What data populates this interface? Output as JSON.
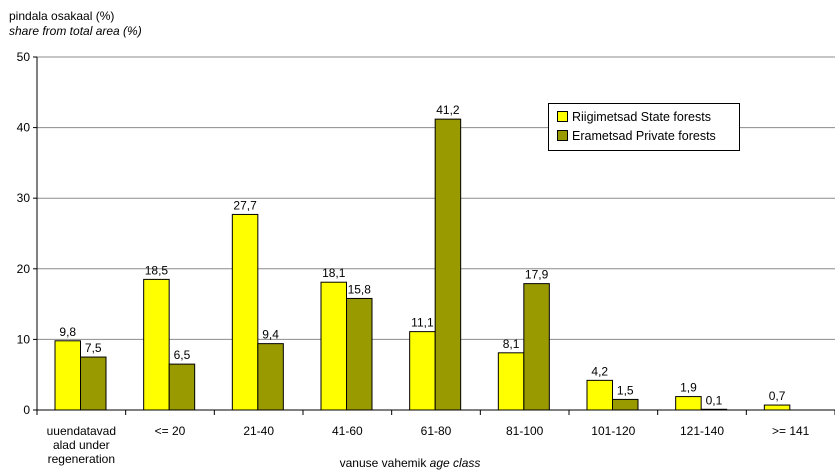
{
  "ylabel_line1": "pindala osakaal (%)",
  "ylabel_line2": "share from total area (%)",
  "xlabel_main": "vanuse vahemik",
  "xlabel_italic": "age class",
  "legend": [
    {
      "label": "Riigimetsad State forests",
      "color": "#ffff00"
    },
    {
      "label": "Erametsad Private forests",
      "color": "#999900"
    }
  ],
  "chart_data": {
    "type": "bar",
    "categories": [
      [
        "uuendatavad",
        "alad  under",
        "regeneration"
      ],
      [
        "<= 20"
      ],
      [
        "21-40"
      ],
      [
        "41-60"
      ],
      [
        "61-80"
      ],
      [
        "81-100"
      ],
      [
        "101-120"
      ],
      [
        "121-140"
      ],
      [
        ">= 141"
      ]
    ],
    "series": [
      {
        "name": "Riigimetsad State forests",
        "color": "#ffff00",
        "values": [
          9.8,
          18.5,
          27.7,
          18.1,
          11.1,
          8.1,
          4.2,
          1.9,
          0.7
        ],
        "labels": [
          "9,8",
          "18,5",
          "27,7",
          "18,1",
          "11,1",
          "8,1",
          "4,2",
          "1,9",
          "0,7"
        ]
      },
      {
        "name": "Erametsad Private forests",
        "color": "#999900",
        "values": [
          7.5,
          6.5,
          9.4,
          15.8,
          41.2,
          17.9,
          1.5,
          0.1,
          null
        ],
        "labels": [
          "7,5",
          "6,5",
          "9,4",
          "15,8",
          "41,2",
          "17,9",
          "1,5",
          "0,1",
          null
        ]
      }
    ],
    "ylim": [
      0,
      50
    ],
    "yticks": [
      0,
      10,
      20,
      30,
      40,
      50
    ],
    "grid": true,
    "legend_position": "top-right"
  }
}
